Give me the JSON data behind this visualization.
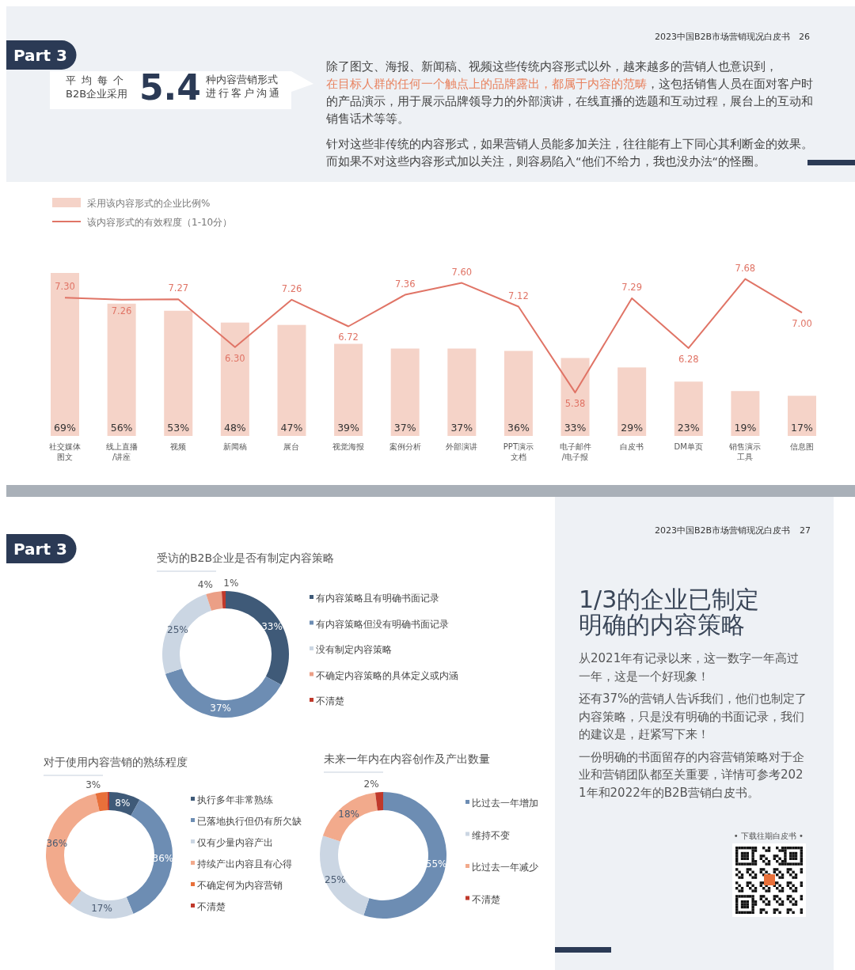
{
  "chart_data": [
    {
      "type": "other",
      "annotations": [
        "2023中国B2B市场营销现况白皮书",
        "26",
        "Part 3",
        "平均每个",
        "B2B企业采用",
        "5.4",
        "种内容营销形式",
        "进行客户沟通",
        "除了图文、海报、新闻稿、视频这些传统内容形式以外，越来越多的营销人也意识到，",
        "在目标人群的任何一个触点上的品牌露出，都属于内容的范畴",
        "，这包括销售人员在面对客户时的产品演示，用于展示品牌领导力的外部演讲，在线直播的选题和互动过程，展台上的互动和销售话术等等。",
        "针对这些非传统的内容形式，如果营销人员能多加关注，往往能有上下同心其利断金的效果。而如果不对这些内容形式加以关注，则容易陷入“他们不给力，我也没办法“的怪圈。"
      ]
    },
    {
      "type": "bar",
      "categories": [
        "社交媒体图文",
        "线上直播/讲座",
        "视频",
        "新闻稿",
        "展台",
        "视觉海报",
        "案例分析",
        "外部演讲",
        "PPT演示文档",
        "电子邮件/电子报",
        "白皮书",
        "DM单页",
        "销售演示工具",
        "信息图"
      ],
      "series": [
        {
          "name": "采用该内容形式的企业比例%",
          "type": "bar",
          "color": "#f5d3c8",
          "values": [
            69,
            56,
            53,
            48,
            47,
            39,
            37,
            37,
            36,
            33,
            29,
            23,
            19,
            17
          ],
          "value_labels": [
            "69%",
            "56%",
            "53%",
            "48%",
            "47%",
            "39%",
            "37%",
            "37%",
            "36%",
            "33%",
            "29%",
            "23%",
            "19%",
            "17%"
          ]
        },
        {
          "name": "该内容形式的有效程度（1-10分）",
          "type": "line",
          "axis": "y2",
          "color": "#e07466",
          "values": [
            7.3,
            7.26,
            7.27,
            6.3,
            7.26,
            6.72,
            7.36,
            7.6,
            7.12,
            5.38,
            7.29,
            6.28,
            7.68,
            7.0
          ],
          "value_labels": [
            "7.30",
            "7.26",
            "7.27",
            "6.30",
            "7.26",
            "6.72",
            "7.36",
            "7.60",
            "7.12",
            "5.38",
            "7.29",
            "6.28",
            "7.68",
            "7.00"
          ]
        }
      ],
      "ylim": [
        0,
        70
      ],
      "y2lim": [
        4.5,
        7.85
      ],
      "tick_labels": false,
      "legend": "top left"
    },
    {
      "type": "donut",
      "title": "受访的B2B企业是否有制定内容策略",
      "categories": [
        "有内容策略且有明确书面记录",
        "有内容策略但没有明确书面记录",
        "没有制定内容策略",
        "不确定内容策略的具体定义或内涵",
        "不清楚"
      ],
      "values": [
        33,
        37,
        25,
        4,
        1
      ],
      "value_labels": [
        "33%",
        "37%",
        "25%",
        "4%",
        "1%"
      ],
      "colors": [
        "#3f5a78",
        "#6d8db3",
        "#cbd6e3",
        "#eb9f86",
        "#c0392b"
      ],
      "legend": "right"
    },
    {
      "type": "donut",
      "title": "对于使用内容营销的熟练程度",
      "categories": [
        "执行多年非常熟练",
        "已落地执行但仍有所欠缺",
        "仅有少量内容产出",
        "持续产出内容且有心得",
        "不确定何为内容营销",
        "不清楚"
      ],
      "values": [
        8,
        36,
        17,
        36,
        3,
        0.5
      ],
      "value_labels": [
        "8%",
        "36%",
        "17%",
        "36%",
        "3%",
        null
      ],
      "colors": [
        "#3f5a78",
        "#6d8db3",
        "#cbd6e3",
        "#f2aa8c",
        "#e8703a",
        "#c0392b"
      ],
      "legend": "right"
    },
    {
      "type": "donut",
      "title": "未来一年内在内容创作及产出数量",
      "categories": [
        "比过去一年增加",
        "维持不变",
        "比过去一年减少",
        "不清楚"
      ],
      "values": [
        55,
        25,
        18,
        2
      ],
      "value_labels": [
        "55%",
        "25%",
        "18%",
        "2%"
      ],
      "colors": [
        "#6d8db3",
        "#cbd6e3",
        "#f2aa8c",
        "#c0392b"
      ],
      "legend": "right"
    },
    {
      "type": "other",
      "annotations": [
        "2023中国B2B市场营销现况白皮书",
        "27",
        "Part 3",
        "1/3的企业已制定明确的内容策略",
        "从2021年有记录以来，这一数字一年高过一年，这是一个好现象！",
        "还有37%的营销人告诉我们，他们也制定了内容策略，只是没有明确的书面记录，我们的建议是，赶紧写下来！",
        "一份明确的书面留存的内容营销策略对于企业和营销团队都至关重要，详情可参考2021年和2022年的B2B营销白皮书。",
        "• 下载往期白皮书 •"
      ]
    }
  ]
}
